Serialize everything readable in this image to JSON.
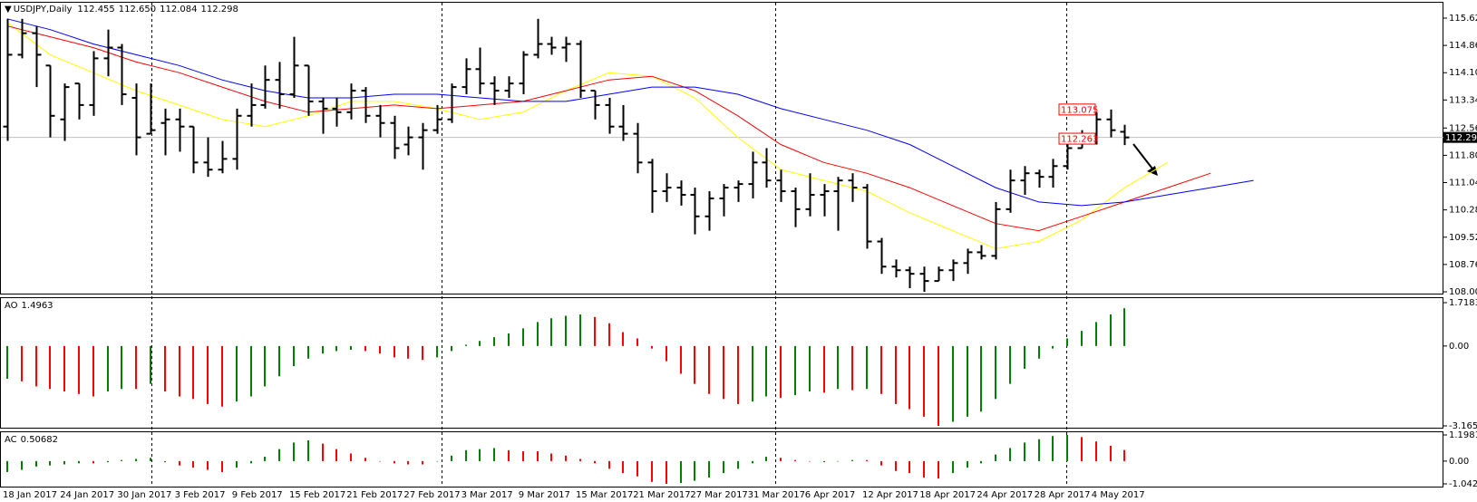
{
  "chart_data": [
    {
      "type": "ohlc",
      "title": "USDJPY,Daily",
      "header_quote": [
        "112.455",
        "112.650",
        "112.084",
        "112.298"
      ],
      "categories": [
        "18 Jan 2017",
        null,
        null,
        null,
        "24 Jan 2017",
        null,
        null,
        null,
        "30 Jan 2017",
        null,
        null,
        null,
        "3 Feb 2017",
        null,
        null,
        null,
        "9 Feb 2017",
        null,
        null,
        null,
        "15 Feb 2017",
        null,
        null,
        null,
        "21 Feb 2017",
        null,
        null,
        null,
        "27 Feb 2017",
        null,
        null,
        null,
        "3 Mar 2017",
        null,
        null,
        null,
        "9 Mar 2017",
        null,
        null,
        null,
        "15 Mar 2017",
        null,
        null,
        null,
        "21 Mar 2017",
        null,
        null,
        null,
        "27 Mar 2017",
        null,
        null,
        null,
        "31 Mar 2017",
        null,
        null,
        null,
        "6 Apr 2017",
        null,
        null,
        null,
        "12 Apr 2017",
        null,
        null,
        null,
        "18 Apr 2017",
        null,
        null,
        null,
        "24 Apr 2017",
        null,
        null,
        null,
        "28 Apr 2017",
        null,
        null,
        null,
        "4 May 2017",
        null,
        null
      ],
      "open": [
        112.6,
        114.6,
        115.2,
        114.3,
        112.8,
        113.8,
        113.2,
        114.5,
        114.8,
        113.4,
        112.4,
        112.7,
        112.8,
        112.6,
        111.6,
        111.4,
        111.7,
        112.9,
        113.2,
        113.9,
        113.5,
        114.3,
        113.3,
        113.1,
        113.0,
        113.6,
        112.9,
        112.7,
        112.1,
        112.3,
        112.5,
        112.8,
        113.7,
        114.2,
        113.8,
        113.6,
        113.8,
        114.6,
        114.9,
        114.8,
        114.9,
        113.6,
        113.2,
        112.6,
        112.4,
        111.6,
        110.8,
        110.9,
        110.7,
        110.1,
        110.6,
        110.9,
        111.0,
        111.6,
        111.1,
        110.8,
        110.3,
        110.7,
        110.8,
        111.1,
        110.9,
        109.4,
        108.7,
        108.6,
        108.5,
        108.3,
        108.6,
        108.8,
        109.1,
        109.0,
        110.3,
        111.1,
        111.3,
        111.2,
        111.5,
        112.0,
        112.3,
        112.8,
        112.455
      ],
      "high": [
        115.6,
        115.6,
        115.4,
        114.3,
        113.8,
        113.8,
        114.7,
        115.3,
        114.9,
        113.8,
        113.8,
        113.1,
        113.1,
        112.6,
        112.3,
        112.2,
        113.1,
        113.8,
        114.3,
        114.4,
        115.1,
        114.3,
        113.4,
        113.4,
        113.8,
        113.7,
        113.2,
        112.9,
        112.6,
        112.7,
        113.2,
        113.8,
        114.5,
        114.8,
        114.0,
        114.0,
        114.7,
        115.6,
        115.1,
        115.1,
        115.0,
        113.6,
        113.4,
        113.2,
        112.7,
        111.7,
        111.3,
        111.1,
        110.9,
        110.8,
        111.0,
        111.1,
        111.9,
        112.0,
        111.4,
        110.9,
        111.3,
        111.0,
        111.2,
        111.3,
        111.0,
        109.5,
        108.9,
        108.7,
        108.7,
        108.7,
        108.9,
        109.2,
        109.3,
        110.5,
        111.4,
        111.5,
        111.4,
        111.7,
        112.2,
        112.5,
        113.0,
        113.075,
        112.65
      ],
      "low": [
        112.2,
        114.5,
        113.7,
        112.3,
        112.2,
        112.8,
        112.9,
        114.0,
        113.2,
        111.8,
        112.4,
        111.8,
        111.9,
        111.3,
        111.2,
        111.3,
        111.4,
        112.6,
        113.1,
        113.1,
        113.4,
        112.9,
        112.4,
        112.6,
        112.8,
        112.7,
        112.3,
        111.7,
        111.8,
        111.4,
        112.4,
        112.7,
        113.5,
        113.5,
        113.2,
        113.4,
        113.5,
        114.5,
        114.6,
        114.4,
        113.4,
        112.8,
        112.4,
        112.2,
        111.3,
        110.2,
        110.5,
        110.4,
        109.6,
        109.7,
        110.1,
        110.5,
        110.6,
        110.9,
        110.5,
        109.8,
        110.1,
        110.1,
        109.7,
        110.5,
        109.2,
        108.5,
        108.4,
        108.1,
        108.0,
        108.3,
        108.3,
        108.5,
        108.9,
        108.9,
        110.2,
        110.7,
        110.9,
        110.9,
        111.4,
        112.0,
        112.1,
        112.3,
        112.084
      ],
      "close": [
        114.6,
        115.2,
        114.6,
        112.9,
        113.7,
        113.2,
        114.5,
        114.8,
        113.5,
        112.3,
        112.5,
        112.8,
        112.6,
        111.6,
        111.4,
        111.7,
        112.9,
        113.2,
        113.9,
        113.5,
        114.3,
        113.3,
        113.1,
        113.0,
        113.6,
        112.9,
        112.7,
        112.0,
        112.3,
        112.5,
        112.8,
        113.7,
        114.2,
        113.8,
        113.6,
        113.8,
        114.6,
        114.9,
        114.8,
        114.9,
        113.6,
        113.2,
        112.6,
        112.4,
        111.6,
        110.8,
        110.9,
        110.7,
        110.1,
        110.6,
        110.9,
        111.0,
        111.6,
        111.1,
        110.8,
        110.3,
        110.7,
        110.8,
        111.1,
        110.9,
        109.4,
        108.7,
        108.6,
        108.5,
        108.3,
        108.6,
        108.8,
        109.1,
        109.0,
        110.3,
        111.1,
        111.3,
        111.2,
        111.5,
        112.0,
        112.3,
        112.8,
        112.5,
        112.298
      ],
      "color": "#000000",
      "lines": [
        {
          "color": "#ffff00",
          "x": [
            0,
            3,
            6,
            9,
            12,
            15,
            18,
            21,
            24,
            27,
            30,
            33,
            36,
            39,
            42,
            45,
            48,
            51,
            54,
            57,
            60,
            63,
            66,
            69,
            72,
            75,
            78,
            81
          ],
          "values": [
            115.5,
            114.6,
            114.1,
            113.6,
            113.2,
            112.8,
            112.6,
            112.9,
            113.3,
            113.3,
            113.1,
            112.8,
            113.0,
            113.6,
            114.1,
            114.0,
            113.4,
            112.3,
            111.4,
            111.1,
            110.8,
            110.2,
            109.7,
            109.2,
            109.4,
            110.0,
            110.9,
            111.6
          ]
        },
        {
          "color": "#ff0000",
          "x": [
            0,
            3,
            6,
            9,
            12,
            15,
            18,
            21,
            24,
            27,
            30,
            33,
            36,
            39,
            42,
            45,
            48,
            51,
            54,
            57,
            60,
            63,
            66,
            69,
            72,
            75,
            78,
            81,
            84
          ],
          "values": [
            115.4,
            115.1,
            114.8,
            114.4,
            114.1,
            113.7,
            113.3,
            113.0,
            113.1,
            113.2,
            113.1,
            113.2,
            113.3,
            113.6,
            113.9,
            114.0,
            113.6,
            112.9,
            112.1,
            111.6,
            111.3,
            110.9,
            110.4,
            109.9,
            109.7,
            110.1,
            110.5,
            110.9,
            111.3
          ]
        },
        {
          "color": "#0000ff",
          "x": [
            0,
            3,
            6,
            9,
            12,
            15,
            18,
            21,
            24,
            27,
            30,
            33,
            36,
            39,
            42,
            45,
            48,
            51,
            54,
            57,
            60,
            63,
            66,
            69,
            72,
            75,
            78,
            81,
            84,
            87
          ],
          "values": [
            115.6,
            115.3,
            114.9,
            114.6,
            114.3,
            113.9,
            113.6,
            113.4,
            113.4,
            113.5,
            113.5,
            113.4,
            113.3,
            113.3,
            113.5,
            113.7,
            113.7,
            113.5,
            113.1,
            112.8,
            112.5,
            112.1,
            111.5,
            110.9,
            110.5,
            110.4,
            110.5,
            110.7,
            110.9,
            111.1
          ]
        }
      ],
      "price_labels": [
        113.075,
        112.263
      ],
      "ylim": [
        108.0,
        115.62
      ],
      "yticks": [
        {
          "value": 115.62,
          "label": "115.620"
        },
        {
          "value": 114.86,
          "label": "114.860"
        },
        {
          "value": 114.1,
          "label": "114.100"
        },
        {
          "value": 113.34,
          "label": "113.340"
        },
        {
          "value": 112.56,
          "label": "112.560"
        },
        {
          "value": 111.8,
          "label": "111.800"
        },
        {
          "value": 111.04,
          "label": "111.040"
        },
        {
          "value": 110.28,
          "label": "110.280"
        },
        {
          "value": 109.52,
          "label": "109.520"
        },
        {
          "value": 108.76,
          "label": "108.760"
        },
        {
          "value": 108.0,
          "label": "108.000"
        }
      ]
    },
    {
      "type": "bar",
      "title": "AO",
      "up_color": "#008000",
      "down_color": "#ff0000",
      "values": [
        -1.3,
        -1.4,
        -1.6,
        -1.7,
        -1.8,
        -1.9,
        -2.0,
        -1.8,
        -1.7,
        -1.7,
        -1.5,
        -1.8,
        -2.0,
        -2.1,
        -2.3,
        -2.4,
        -2.2,
        -2.0,
        -1.6,
        -1.2,
        -0.8,
        -0.5,
        -0.3,
        -0.2,
        -0.15,
        -0.2,
        -0.3,
        -0.45,
        -0.5,
        -0.55,
        -0.45,
        -0.2,
        0.05,
        0.2,
        0.35,
        0.5,
        0.7,
        0.95,
        1.1,
        1.2,
        1.25,
        1.15,
        0.9,
        0.55,
        0.3,
        -0.1,
        -0.6,
        -1.1,
        -1.5,
        -1.9,
        -2.1,
        -2.3,
        -2.2,
        -2.0,
        -2.05,
        -1.95,
        -1.8,
        -1.85,
        -1.7,
        -1.75,
        -1.7,
        -1.9,
        -2.3,
        -2.5,
        -2.8,
        -3.1654,
        -3.0,
        -2.8,
        -2.6,
        -2.1,
        -1.5,
        -0.9,
        -0.5,
        -0.1,
        0.3,
        0.6,
        0.95,
        1.25,
        1.4963
      ],
      "ylim": [
        -3.1654,
        1.7183
      ],
      "yticks": [
        1.7183,
        {
          "value": 0,
          "label": "0.00"
        },
        -3.1654
      ]
    },
    {
      "type": "bar",
      "title": "AC",
      "up_color": "#008000",
      "down_color": "#ff0000",
      "values": [
        -0.5,
        -0.4,
        -0.25,
        -0.2,
        -0.15,
        -0.1,
        -0.1,
        -0.05,
        0.05,
        0.1,
        0.15,
        -0.05,
        -0.2,
        -0.3,
        -0.4,
        -0.5,
        -0.3,
        -0.1,
        0.2,
        0.55,
        0.85,
        0.95,
        0.8,
        0.55,
        0.35,
        0.15,
        0.0,
        -0.1,
        -0.15,
        -0.15,
        0.0,
        0.25,
        0.5,
        0.55,
        0.6,
        0.5,
        0.45,
        0.45,
        0.35,
        0.25,
        0.1,
        -0.1,
        -0.35,
        -0.55,
        -0.7,
        -0.95,
        -1.04209,
        -1.0,
        -0.9,
        -0.75,
        -0.55,
        -0.35,
        -0.1,
        0.2,
        0.15,
        0.05,
        0.0,
        -0.05,
        0.0,
        0.05,
        0.05,
        -0.2,
        -0.45,
        -0.55,
        -0.75,
        -0.8,
        -0.55,
        -0.3,
        -0.1,
        0.3,
        0.6,
        0.85,
        1.0,
        1.15,
        1.19818,
        1.1,
        0.9,
        0.7,
        0.50682
      ],
      "ylim": [
        -1.04209,
        1.19818
      ],
      "yticks": [
        1.19818,
        {
          "value": 0,
          "label": "0.00"
        },
        -1.04209
      ]
    }
  ]
}
